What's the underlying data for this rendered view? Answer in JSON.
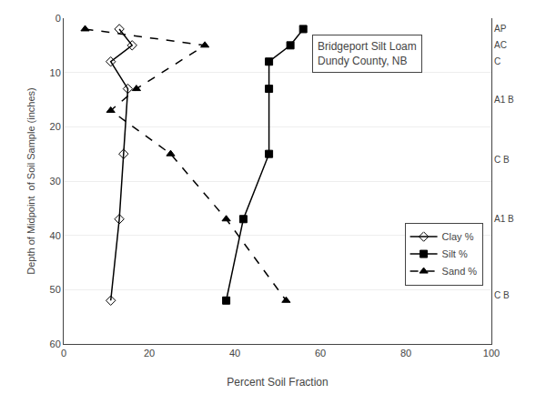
{
  "chart_data": {
    "type": "line",
    "title": "Bridgeport Silt Loam\nDundy County, NB",
    "xlabel": "Percent Soil Fraction",
    "ylabel": "Depth of Midpoint  of Soil Sample (inches)",
    "xlim": [
      0,
      100
    ],
    "xticks": [
      0,
      20,
      40,
      60,
      80,
      100
    ],
    "ylim": [
      60,
      0
    ],
    "yticks": [
      0,
      10,
      20,
      30,
      40,
      50,
      60
    ],
    "y2lim": [
      60,
      0
    ],
    "y2ticks": [
      {
        "value": 2,
        "label": "AP"
      },
      {
        "value": 5,
        "label": "AC"
      },
      {
        "value": 8,
        "label": "C"
      },
      {
        "value": 15,
        "label": "A1 B"
      },
      {
        "value": 26,
        "label": "C B"
      },
      {
        "value": 37,
        "label": "A1 B"
      },
      {
        "value": 51,
        "label": "C B"
      }
    ],
    "grid": "y",
    "legend": "lower right",
    "series": [
      {
        "name": "Clay %",
        "color": "#000000",
        "marker": "diamond-open",
        "line_style": "solid",
        "x": [
          13,
          16,
          11,
          15,
          14,
          13,
          11
        ],
        "y": [
          2,
          5,
          8,
          13,
          25,
          37,
          52
        ]
      },
      {
        "name": "Silt %",
        "color": "#000000",
        "marker": "square",
        "line_style": "solid",
        "x": [
          56,
          53,
          48,
          48,
          48,
          42,
          38
        ],
        "y": [
          2,
          5,
          8,
          13,
          25,
          37,
          52
        ]
      },
      {
        "name": "Sand %",
        "color": "#000000",
        "marker": "triangle-up",
        "line_style": "dashed",
        "x": [
          5,
          33,
          17,
          11,
          25,
          38,
          52
        ],
        "y": [
          2,
          5,
          13,
          17,
          25,
          37,
          52
        ]
      }
    ]
  }
}
